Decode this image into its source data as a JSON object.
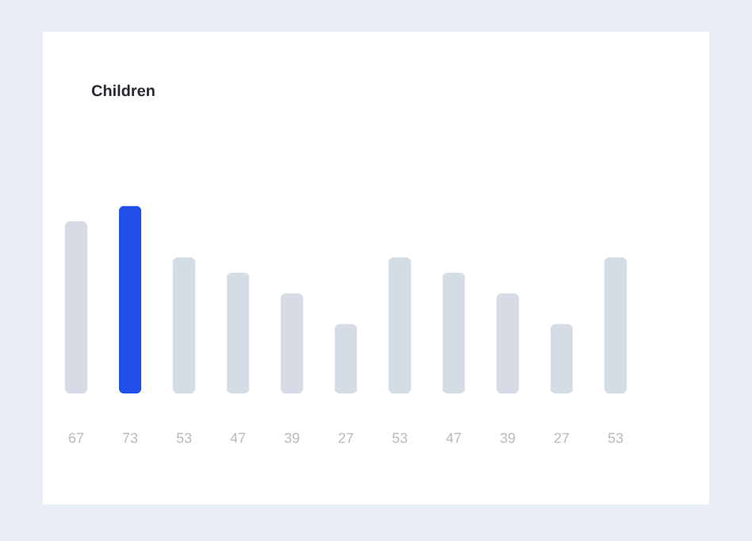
{
  "chart_data": {
    "type": "bar",
    "title": "Children",
    "categories": [
      null,
      null,
      null,
      null,
      null,
      null,
      null,
      null,
      null,
      null,
      null
    ],
    "values": [
      67,
      73,
      53,
      47,
      39,
      27,
      53,
      47,
      39,
      27,
      53
    ],
    "colors": [
      "#d5dce5",
      "#1f4fe8",
      "#d5dce5",
      "#d5dce5",
      "#d5dce5",
      "#d5dce5",
      "#d5dce5",
      "#d5dce5",
      "#d5dce5",
      "#d5dce5",
      "#d5dce5"
    ],
    "data_labels": true
  }
}
